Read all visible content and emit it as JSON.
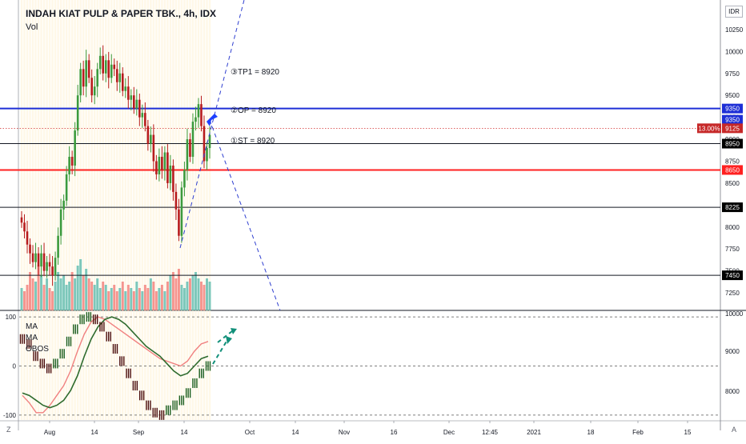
{
  "header": {
    "title": "INDAH KIAT PULP & PAPER TBK., 4h, IDX",
    "vol_label": "Vol",
    "currency": "IDR"
  },
  "annotations": {
    "tp1": "③TP1 =  8920",
    "op": "②OP =  8920",
    "st": "①ST =  8920"
  },
  "price_badges": {
    "b9350a": "9350",
    "b9350b": "9350",
    "pct": "13.00%",
    "b9125": "9125",
    "b8950": "8950",
    "b8650": "8650",
    "b8225": "8225",
    "b7450": "7450"
  },
  "oscillator_labels": {
    "ma1": "MA",
    "ma2": "MA",
    "obos": "OBOS"
  },
  "side_letters": {
    "left_bottom": "Z",
    "right_bottom": "A"
  },
  "colors": {
    "up": "#26a69a",
    "down": "#ef5350",
    "candle_up": "#3c9a3c",
    "candle_down": "#b71c1c",
    "blue_line": "#1e2fd6",
    "red_line": "#ff2020",
    "dash_blue": "#2f3fd0",
    "ma_green": "#2e6b2e",
    "ma_pink": "#f08080",
    "arrow_teal": "#12907a"
  },
  "chart_data": [
    {
      "type": "candlestick",
      "title": "INDAH KIAT PULP & PAPER TBK., 4h, IDX",
      "ylim": [
        7050,
        10550
      ],
      "y_ticks": [
        7250,
        7500,
        7750,
        8000,
        8250,
        8500,
        8750,
        9000,
        9250,
        9500,
        9750,
        10000,
        10250
      ],
      "x_ticks": [
        "Aug",
        "14",
        "Sep",
        "14",
        "Oct",
        "14",
        "Nov",
        "16",
        "Dec",
        "12:45",
        "2021",
        "18",
        "Feb",
        "15"
      ],
      "series": [
        {
          "name": "Price",
          "closes": [
            8050,
            7950,
            7800,
            7700,
            7600,
            7700,
            7550,
            7700,
            7500,
            7600,
            7550,
            7450,
            7650,
            7900,
            8200,
            8300,
            8600,
            8800,
            8700,
            9100,
            9500,
            9800,
            9600,
            9900,
            9700,
            9500,
            9600,
            9800,
            9950,
            9750,
            9900,
            9700,
            9850,
            9800,
            9650,
            9750,
            9550,
            9600,
            9450,
            9500,
            9350,
            9450,
            9250,
            9300,
            9150,
            8950,
            9050,
            8750,
            8600,
            8800,
            8650,
            8850,
            8500,
            8700,
            8400,
            8200,
            7900,
            8450,
            8650,
            9000,
            8800,
            9200,
            9250,
            9400,
            9150,
            8750,
            8900,
            9050
          ]
        },
        {
          "name": "Vol",
          "values": [
            0.35,
            0.3,
            0.4,
            0.6,
            0.5,
            0.45,
            0.7,
            0.55,
            0.4,
            0.5,
            0.35,
            0.3,
            0.45,
            0.6,
            0.5,
            0.55,
            0.4,
            0.45,
            0.6,
            0.5,
            0.7,
            0.8,
            0.55,
            0.65,
            0.5,
            0.45,
            0.4,
            0.5,
            0.35,
            0.45,
            0.4,
            0.3,
            0.35,
            0.4,
            0.3,
            0.35,
            0.45,
            0.3,
            0.4,
            0.35,
            0.3,
            0.45,
            0.35,
            0.3,
            0.4,
            0.35,
            0.5,
            0.45,
            0.3,
            0.35,
            0.4,
            0.3,
            0.45,
            0.55,
            0.6,
            0.5,
            0.65,
            0.4,
            0.35,
            0.45,
            0.5,
            0.55,
            0.6,
            0.5,
            0.45,
            0.4,
            0.5,
            0.45
          ]
        }
      ],
      "levels": [
        {
          "price": 9350,
          "color": "blue",
          "style": "solid"
        },
        {
          "price": 9125,
          "color": "red",
          "style": "dotted"
        },
        {
          "price": 8950,
          "color": "black",
          "style": "solid"
        },
        {
          "price": 8650,
          "color": "red",
          "style": "solid"
        },
        {
          "price": 8225,
          "color": "black",
          "style": "solid"
        },
        {
          "price": 7450,
          "color": "black",
          "style": "solid"
        }
      ]
    },
    {
      "type": "line",
      "ylim": [
        -110,
        110
      ],
      "y_ticks": [
        100,
        0,
        -100
      ],
      "right_ticks": [
        "10000",
        "9000",
        "8000"
      ],
      "series": [
        {
          "name": "MA",
          "values": [
            -55,
            -60,
            -70,
            -80,
            -85,
            -80,
            -70,
            -50,
            -20,
            20,
            55,
            80,
            95,
            100,
            95,
            85,
            70,
            55,
            40,
            30,
            20,
            5,
            -10,
            -20,
            -15,
            0,
            15,
            20
          ]
        },
        {
          "name": "MA",
          "values": [
            -60,
            -75,
            -95,
            -95,
            -80,
            -60,
            -40,
            -10,
            30,
            65,
            90,
            100,
            95,
            85,
            75,
            65,
            55,
            45,
            35,
            25,
            15,
            10,
            5,
            0,
            10,
            30,
            45,
            50
          ]
        },
        {
          "name": "OBOS",
          "values": [
            55,
            45,
            20,
            5,
            -5,
            5,
            25,
            50,
            75,
            95,
            100,
            95,
            80,
            60,
            35,
            10,
            -15,
            -40,
            -60,
            -80,
            -95,
            -100,
            -90,
            -80,
            -70,
            -55,
            -35,
            -15,
            0
          ]
        }
      ]
    }
  ]
}
